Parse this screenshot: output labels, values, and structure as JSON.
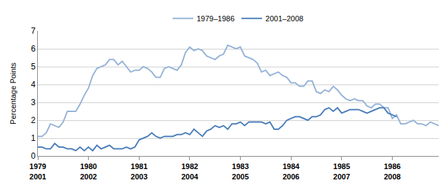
{
  "chart_data": {
    "type": "line",
    "y_label": "Percentage Points",
    "categories": [
      "1979\n2001",
      null,
      null,
      null,
      null,
      null,
      null,
      null,
      null,
      null,
      null,
      null,
      "1980\n2002",
      null,
      null,
      null,
      null,
      null,
      null,
      null,
      null,
      null,
      null,
      null,
      "1981\n2003",
      null,
      null,
      null,
      null,
      null,
      null,
      null,
      null,
      null,
      null,
      null,
      "1982\n2004",
      null,
      null,
      null,
      null,
      null,
      null,
      null,
      null,
      null,
      null,
      null,
      "1983\n2005",
      null,
      null,
      null,
      null,
      null,
      null,
      null,
      null,
      null,
      null,
      null,
      "1984\n2006",
      null,
      null,
      null,
      null,
      null,
      null,
      null,
      null,
      null,
      null,
      null,
      "1985\n2007",
      null,
      null,
      null,
      null,
      null,
      null,
      null,
      null,
      null,
      null,
      null,
      "1986\n2008",
      null,
      null,
      null,
      null,
      null,
      null,
      null,
      null,
      null,
      null,
      null
    ],
    "series": [
      {
        "name": "1979–1986",
        "color": "#95b3d7",
        "values": [
          1.1,
          1.1,
          1.3,
          1.8,
          1.7,
          1.6,
          1.9,
          2.5,
          2.5,
          2.5,
          2.9,
          3.4,
          3.8,
          4.5,
          4.9,
          5.0,
          5.1,
          5.4,
          5.4,
          5.1,
          5.3,
          5.0,
          4.7,
          4.8,
          4.8,
          5.0,
          4.9,
          4.7,
          4.4,
          4.4,
          4.9,
          5.0,
          4.9,
          4.8,
          5.1,
          5.8,
          6.1,
          5.9,
          6.0,
          5.9,
          5.6,
          5.5,
          5.4,
          5.6,
          5.7,
          6.2,
          6.1,
          6.0,
          6.1,
          5.6,
          5.5,
          5.4,
          5.2,
          4.7,
          4.8,
          4.5,
          4.6,
          4.7,
          4.5,
          4.4,
          4.1,
          4.1,
          3.9,
          3.9,
          4.2,
          4.2,
          3.6,
          3.5,
          3.7,
          3.6,
          3.9,
          3.7,
          3.4,
          3.2,
          3.1,
          3.2,
          3.1,
          3.1,
          2.8,
          2.7,
          2.9,
          2.9,
          2.7,
          2.7,
          2.1,
          2.3,
          1.8,
          1.8,
          1.9,
          2.0,
          1.8,
          1.8,
          1.7,
          1.9,
          1.8,
          1.7
        ]
      },
      {
        "name": "2001–2008",
        "color": "#4a7ebb",
        "values": [
          0.5,
          0.5,
          0.4,
          0.4,
          0.7,
          0.5,
          0.5,
          0.4,
          0.4,
          0.3,
          0.5,
          0.3,
          0.5,
          0.3,
          0.6,
          0.4,
          0.5,
          0.6,
          0.4,
          0.4,
          0.4,
          0.5,
          0.4,
          0.5,
          0.9,
          1.0,
          1.1,
          1.3,
          1.1,
          1.0,
          1.1,
          1.1,
          1.1,
          1.2,
          1.2,
          1.3,
          1.2,
          1.5,
          1.3,
          1.1,
          1.4,
          1.5,
          1.7,
          1.6,
          1.7,
          1.5,
          1.8,
          1.8,
          1.9,
          1.7,
          1.9,
          1.9,
          1.9,
          1.9,
          1.8,
          1.9,
          1.5,
          1.5,
          1.7,
          2.0,
          2.1,
          2.2,
          2.2,
          2.1,
          2.0,
          2.2,
          2.2,
          2.3,
          2.6,
          2.7,
          2.5,
          2.7,
          2.4,
          2.5,
          2.6,
          2.6,
          2.6,
          2.5,
          2.4,
          2.5,
          2.6,
          2.7,
          2.7,
          2.4,
          2.3,
          2.2,
          null,
          null,
          null,
          null,
          null,
          null,
          null,
          null,
          null,
          null
        ]
      }
    ],
    "ylim": [
      0,
      7
    ],
    "yticks": [
      0,
      1,
      2,
      3,
      4,
      5,
      6,
      7
    ],
    "grid": true,
    "legend": "top"
  }
}
